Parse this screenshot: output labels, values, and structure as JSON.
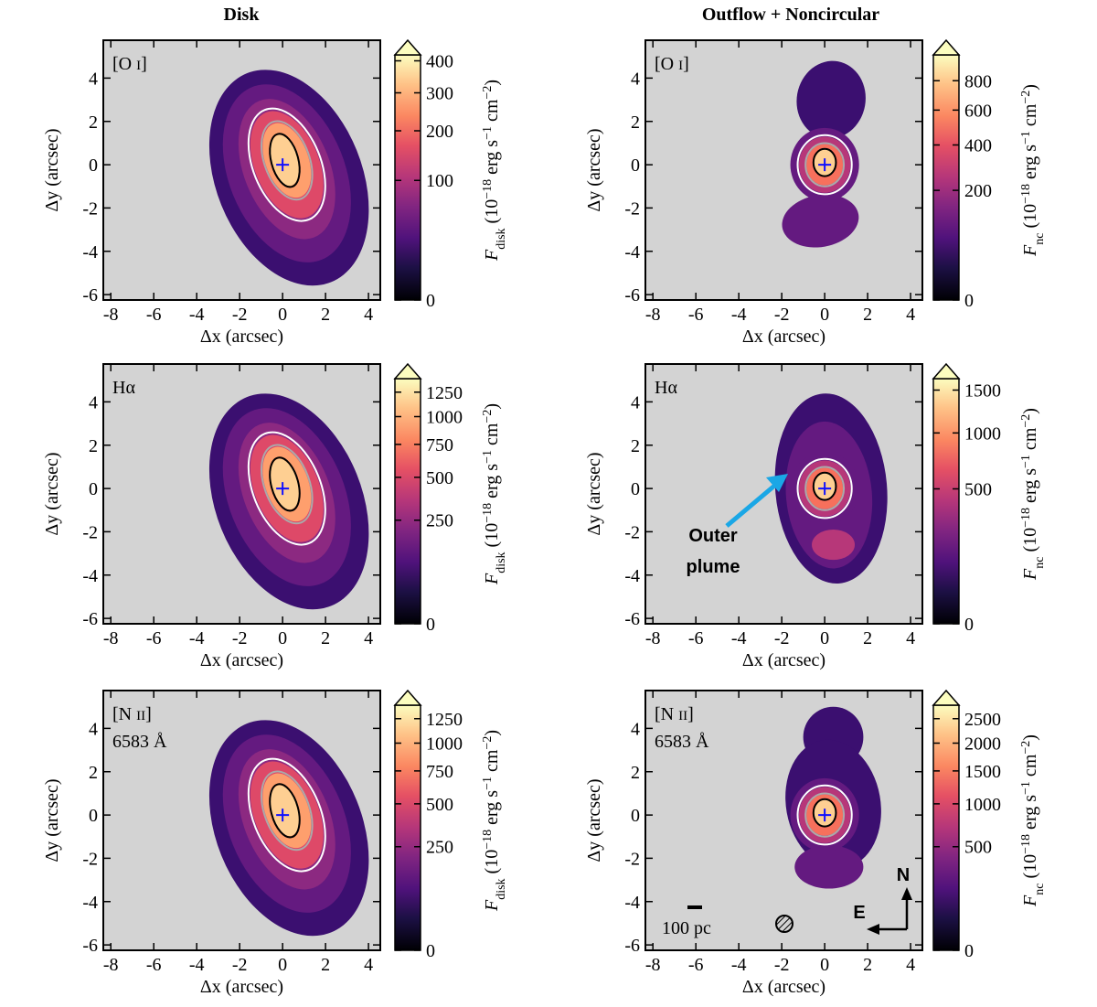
{
  "chart_data": [
    {
      "type": "heatmap",
      "title": "Disk",
      "panel_label": [
        "[O ",
        "I",
        "]"
      ],
      "xlabel": "Δx (arcsec)",
      "ylabel": "Δy (arcsec)",
      "xlim": [
        -8.35,
        4.55
      ],
      "ylim": [
        -6.25,
        5.75
      ],
      "xticks": [
        -8,
        -6,
        -4,
        -2,
        0,
        2,
        4
      ],
      "yticks": [
        -6,
        -4,
        -2,
        0,
        2,
        4
      ],
      "colormap": "magma",
      "colorbar_scale": "sqrt",
      "colorbar_lim": [
        0,
        420
      ],
      "colorbar_ticks": [
        0,
        100,
        200,
        300,
        400
      ],
      "colorbar_label": [
        "F",
        "disk",
        " (10",
        "−18",
        " erg s",
        "−1",
        " cm",
        "−2",
        ")"
      ]
    },
    {
      "type": "heatmap",
      "title": "Outflow + Noncircular",
      "panel_label": [
        "[O ",
        "I",
        "]"
      ],
      "xlabel": "Δx (arcsec)",
      "ylabel": "Δy (arcsec)",
      "xlim": [
        -8.35,
        4.55
      ],
      "ylim": [
        -6.25,
        5.75
      ],
      "xticks": [
        -8,
        -6,
        -4,
        -2,
        0,
        2,
        4
      ],
      "yticks": [
        -6,
        -4,
        -2,
        0,
        2,
        4
      ],
      "colormap": "magma",
      "colorbar_scale": "sqrt",
      "colorbar_lim": [
        0,
        1000
      ],
      "colorbar_ticks": [
        0,
        200,
        400,
        600,
        800
      ],
      "colorbar_label": [
        "F",
        "nc",
        " (10",
        "−18",
        " erg s",
        "−1",
        " cm",
        "−2",
        ")"
      ]
    },
    {
      "type": "heatmap",
      "panel_label": [
        "Hα"
      ],
      "xlabel": "Δx (arcsec)",
      "ylabel": "Δy (arcsec)",
      "xlim": [
        -8.35,
        4.55
      ],
      "ylim": [
        -6.25,
        5.75
      ],
      "xticks": [
        -8,
        -6,
        -4,
        -2,
        0,
        2,
        4
      ],
      "yticks": [
        -6,
        -4,
        -2,
        0,
        2,
        4
      ],
      "colormap": "magma",
      "colorbar_scale": "sqrt",
      "colorbar_lim": [
        0,
        1400
      ],
      "colorbar_ticks": [
        0,
        250,
        500,
        750,
        1000,
        1250
      ],
      "colorbar_label": [
        "F",
        "disk",
        " (10",
        "−18",
        " erg s",
        "−1",
        " cm",
        "−2",
        ")"
      ]
    },
    {
      "type": "heatmap",
      "panel_label": [
        "Hα"
      ],
      "xlabel": "Δx (arcsec)",
      "ylabel": "Δy (arcsec)",
      "xlim": [
        -8.35,
        4.55
      ],
      "ylim": [
        -6.25,
        5.75
      ],
      "xticks": [
        -8,
        -6,
        -4,
        -2,
        0,
        2,
        4
      ],
      "yticks": [
        -6,
        -4,
        -2,
        0,
        2,
        4
      ],
      "colormap": "magma",
      "colorbar_scale": "sqrt",
      "colorbar_lim": [
        0,
        1650
      ],
      "colorbar_ticks": [
        0,
        500,
        1000,
        1500
      ],
      "colorbar_label": [
        "F",
        "nc",
        " (10",
        "−18",
        " erg s",
        "−1",
        " cm",
        "−2",
        ")"
      ],
      "annotation": [
        "Outer",
        "plume"
      ]
    },
    {
      "type": "heatmap",
      "panel_label": [
        "[N ",
        "II",
        "]"
      ],
      "panel_sublabel": "6583 Å",
      "xlabel": "Δx (arcsec)",
      "ylabel": "Δy (arcsec)",
      "xlim": [
        -8.35,
        4.55
      ],
      "ylim": [
        -6.25,
        5.75
      ],
      "xticks": [
        -8,
        -6,
        -4,
        -2,
        0,
        2,
        4
      ],
      "yticks": [
        -6,
        -4,
        -2,
        0,
        2,
        4
      ],
      "colormap": "magma",
      "colorbar_scale": "sqrt",
      "colorbar_lim": [
        0,
        1400
      ],
      "colorbar_ticks": [
        0,
        250,
        500,
        750,
        1000,
        1250
      ],
      "colorbar_label": [
        "F",
        "disk",
        " (10",
        "−18",
        " erg s",
        "−1",
        " cm",
        "−2",
        ")"
      ]
    },
    {
      "type": "heatmap",
      "panel_label": [
        "[N ",
        "II",
        "]"
      ],
      "panel_sublabel": "6583 Å",
      "xlabel": "Δx (arcsec)",
      "ylabel": "Δy (arcsec)",
      "xlim": [
        -8.35,
        4.55
      ],
      "ylim": [
        -6.25,
        5.75
      ],
      "xticks": [
        -8,
        -6,
        -4,
        -2,
        0,
        2,
        4
      ],
      "yticks": [
        -6,
        -4,
        -2,
        0,
        2,
        4
      ],
      "colormap": "magma",
      "colorbar_scale": "sqrt",
      "colorbar_lim": [
        0,
        2800
      ],
      "colorbar_ticks": [
        0,
        500,
        1000,
        1500,
        2000,
        2500
      ],
      "colorbar_label": [
        "F",
        "nc",
        " (10",
        "−18",
        " erg s",
        "−1",
        " cm",
        "−2",
        ")"
      ],
      "scale_bar_label": "100 pc",
      "compass": [
        "N",
        "E"
      ]
    }
  ]
}
